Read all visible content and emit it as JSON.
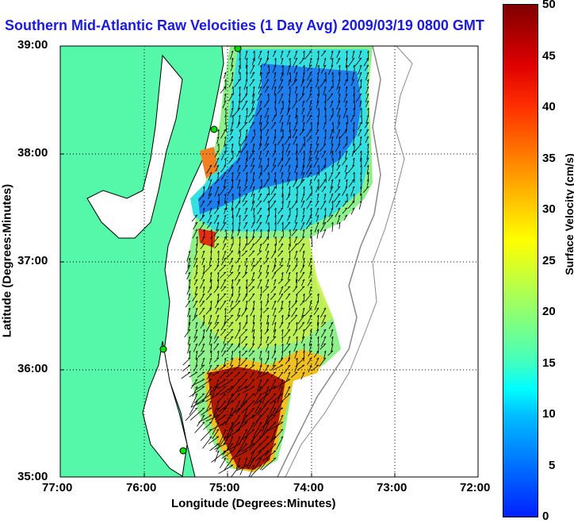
{
  "title": "Southern Mid-Atlantic Raw Velocities (1 Day Avg) 2009/03/19 0800 GMT",
  "x_axis": {
    "label": "Longitude (Degrees:Minutes)",
    "ticks": [
      "77:00",
      "76:00",
      "75:00",
      "74:00",
      "73:00",
      "72:00"
    ]
  },
  "y_axis": {
    "label": "Latitude (Degrees:Minutes)",
    "ticks": [
      "39:00",
      "38:00",
      "37:00",
      "36:00",
      "35:00"
    ]
  },
  "colorbar": {
    "label": "Surface Velocity (cm/s)",
    "ticks": [
      "50",
      "45",
      "40",
      "35",
      "30",
      "25",
      "20",
      "15",
      "10",
      "5",
      "0"
    ],
    "range": [
      0,
      50
    ]
  },
  "colors": {
    "land": "#55f7a8",
    "slow": "#1a6cf0",
    "medium": "#36e0e0",
    "green": "#8ef08a",
    "yellow": "#f0f030",
    "fast": "#a02000",
    "title": "#1a1adc",
    "site": "#00e000"
  }
}
